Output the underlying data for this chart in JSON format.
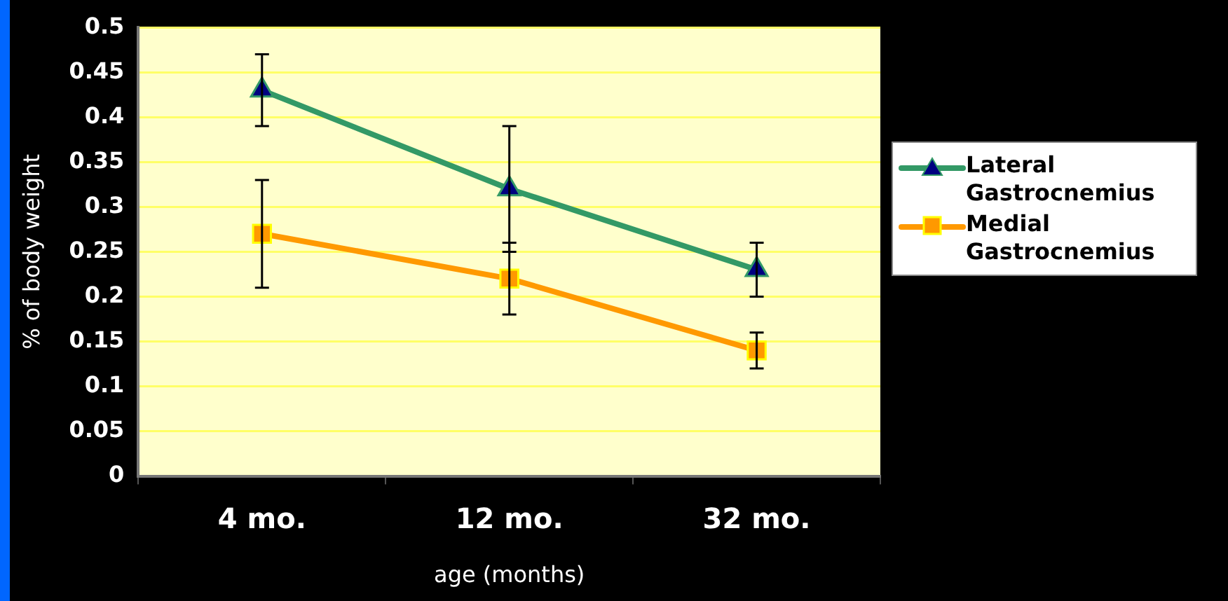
{
  "chart_data": {
    "type": "line",
    "xlabel": "age (months)",
    "ylabel": "% of body weight",
    "categories": [
      "4 mo.",
      "12 mo.",
      "32 mo."
    ],
    "ylim": [
      0,
      0.5
    ],
    "yticks": [
      0,
      0.05,
      0.1,
      0.15,
      0.2,
      0.25,
      0.3,
      0.35,
      0.4,
      0.45,
      0.5
    ],
    "grid": "y",
    "legend": "right",
    "line_style": "solid",
    "series": [
      {
        "name": "Lateral Gastrocnemius",
        "color": "#339966",
        "marker": "triangle",
        "values": [
          0.43,
          0.32,
          0.23
        ],
        "errors": [
          [
            0.39,
            0.47
          ],
          [
            0.25,
            0.39
          ],
          [
            0.2,
            0.26
          ]
        ]
      },
      {
        "name": "Medial Gastrocnemius",
        "color": "#ff9900",
        "marker": "square",
        "values": [
          0.27,
          0.22,
          0.14
        ],
        "errors": [
          [
            0.21,
            0.33
          ],
          [
            0.18,
            0.26
          ],
          [
            0.12,
            0.16
          ]
        ]
      }
    ]
  }
}
